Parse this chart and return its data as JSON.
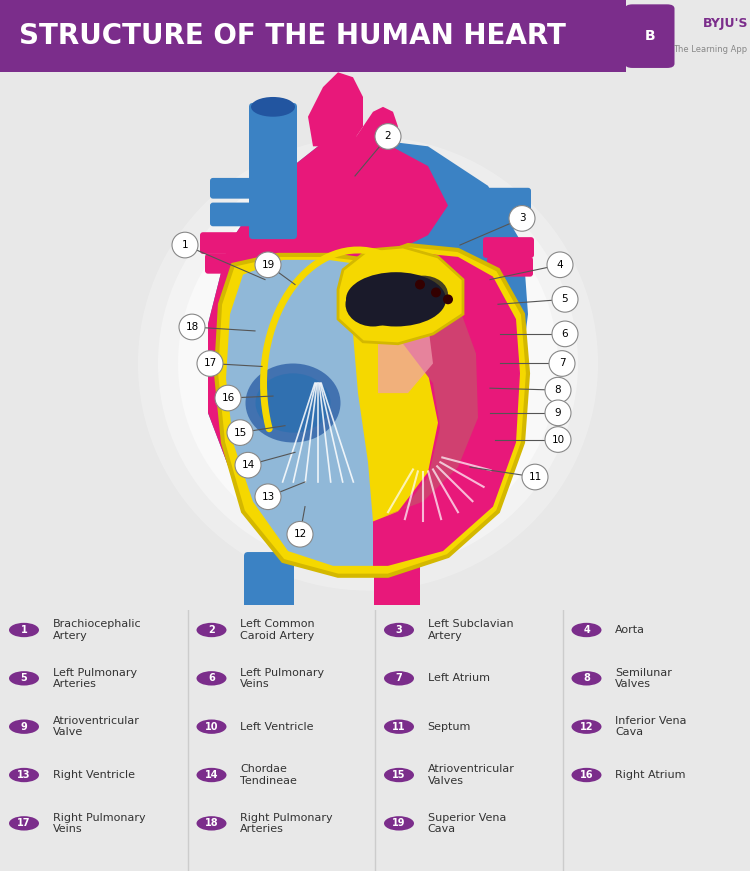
{
  "title": "STRUCTURE OF THE HUMAN HEART",
  "title_bg": "#7B2D8B",
  "title_text_color": "#FFFFFF",
  "bg_color": "#E8E8E8",
  "byju_purple": "#7B2D8B",
  "legend_items": [
    {
      "num": "1",
      "label": "Brachiocephalic\nArtery"
    },
    {
      "num": "2",
      "label": "Left Common\nCaroid Artery"
    },
    {
      "num": "3",
      "label": "Left Subclavian\nArtery"
    },
    {
      "num": "4",
      "label": "Aorta"
    },
    {
      "num": "5",
      "label": "Left Pulmonary\nArteries"
    },
    {
      "num": "6",
      "label": "Left Pulmonary\nVeins"
    },
    {
      "num": "7",
      "label": "Left Atrium"
    },
    {
      "num": "8",
      "label": "Semilunar\nValves"
    },
    {
      "num": "9",
      "label": "Atrioventricular\nValve"
    },
    {
      "num": "10",
      "label": "Left Ventricle"
    },
    {
      "num": "11",
      "label": "Septum"
    },
    {
      "num": "12",
      "label": "Inferior Vena\nCava"
    },
    {
      "num": "13",
      "label": "Right Ventricle"
    },
    {
      "num": "14",
      "label": "Chordae\nTendineae"
    },
    {
      "num": "15",
      "label": "Atrioventricular\nValves"
    },
    {
      "num": "16",
      "label": "Right Atrium"
    },
    {
      "num": "17",
      "label": "Right Pulmonary\nVeins"
    },
    {
      "num": "18",
      "label": "Right Pulmonary\nArteries"
    },
    {
      "num": "19",
      "label": "Superior Vena\nCava"
    }
  ],
  "divider_color": "#CCCCCC",
  "pink": "#E8187A",
  "blue": "#3B82C4",
  "yellow": "#F5D800",
  "yellow_edge": "#D4B800",
  "light_blue": "#90B8D8",
  "light_blue2": "#B8D4E8",
  "dark_blue": "#2255A0",
  "pink_light": "#F0A0B0",
  "dark_gray": "#1A1A2A",
  "white_glow": "#F0F0F0",
  "label_circle_bg": "#FFFFFF",
  "label_circle_edge": "#888888",
  "line_color": "#555555"
}
